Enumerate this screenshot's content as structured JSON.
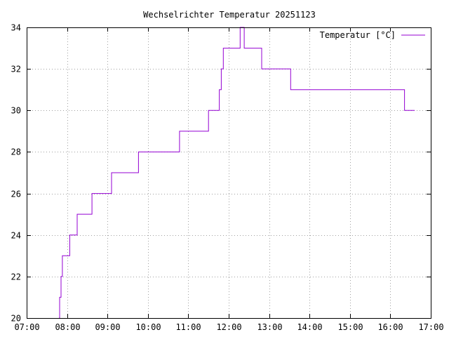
{
  "chart_data": {
    "type": "line",
    "title": "Wechselrichter Temperatur 20251123",
    "xlabel": "",
    "ylabel": "",
    "x_ticks": [
      "07:00",
      "08:00",
      "09:00",
      "10:00",
      "11:00",
      "12:00",
      "13:00",
      "14:00",
      "15:00",
      "16:00",
      "17:00"
    ],
    "y_ticks": [
      "20",
      "22",
      "24",
      "26",
      "28",
      "30",
      "32",
      "34"
    ],
    "xlim": [
      "07:00",
      "17:00"
    ],
    "ylim": [
      20,
      34
    ],
    "grid": true,
    "legend_position": "top-right",
    "series": [
      {
        "name": "Temperatur [°C]",
        "color": "#9400d3",
        "step": true,
        "points": [
          [
            "07:48",
            20
          ],
          [
            "07:49",
            21
          ],
          [
            "07:51",
            22
          ],
          [
            "07:53",
            23
          ],
          [
            "08:04",
            24
          ],
          [
            "08:15",
            25
          ],
          [
            "08:37",
            26
          ],
          [
            "09:06",
            27
          ],
          [
            "09:46",
            28
          ],
          [
            "10:47",
            29
          ],
          [
            "11:30",
            30
          ],
          [
            "11:46",
            31
          ],
          [
            "11:49",
            32
          ],
          [
            "11:52",
            33
          ],
          [
            "12:17",
            34
          ],
          [
            "12:23",
            33
          ],
          [
            "12:49",
            32
          ],
          [
            "13:32",
            31
          ],
          [
            "16:21",
            30
          ],
          [
            "16:36",
            30
          ]
        ]
      }
    ]
  }
}
